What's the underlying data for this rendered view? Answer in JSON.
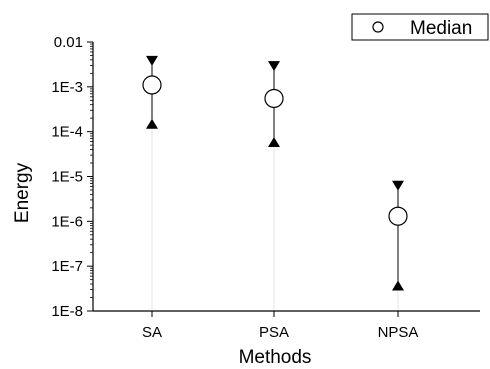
{
  "chart_data": {
    "type": "scatter",
    "title": "",
    "xlabel": "Methods",
    "ylabel": "Energy",
    "y_scale": "log",
    "ylim": [
      1e-08,
      0.01
    ],
    "grid": false,
    "categories": [
      "SA",
      "PSA",
      "NPSA"
    ],
    "y_ticks": [
      {
        "value": 0.01,
        "label": "0.01"
      },
      {
        "value": 0.001,
        "label": "1E-3"
      },
      {
        "value": 0.0001,
        "label": "1E-4"
      },
      {
        "value": 1e-05,
        "label": "1E-5"
      },
      {
        "value": 1e-06,
        "label": "1E-6"
      },
      {
        "value": 1e-07,
        "label": "1E-7"
      },
      {
        "value": 1e-08,
        "label": "1E-8"
      }
    ],
    "series": [
      {
        "name": "Median",
        "values": [
          0.0011,
          0.00055,
          1.3e-06
        ],
        "upper": [
          0.0038,
          0.0029,
          6.2e-06
        ],
        "lower": [
          0.00015,
          5.9e-05,
          3.7e-08
        ]
      }
    ],
    "legend": {
      "position": "top-right"
    },
    "colors": {
      "marker_fill": "#ffffff",
      "marker_stroke": "#000000",
      "stem": "#e6e6e6"
    }
  }
}
